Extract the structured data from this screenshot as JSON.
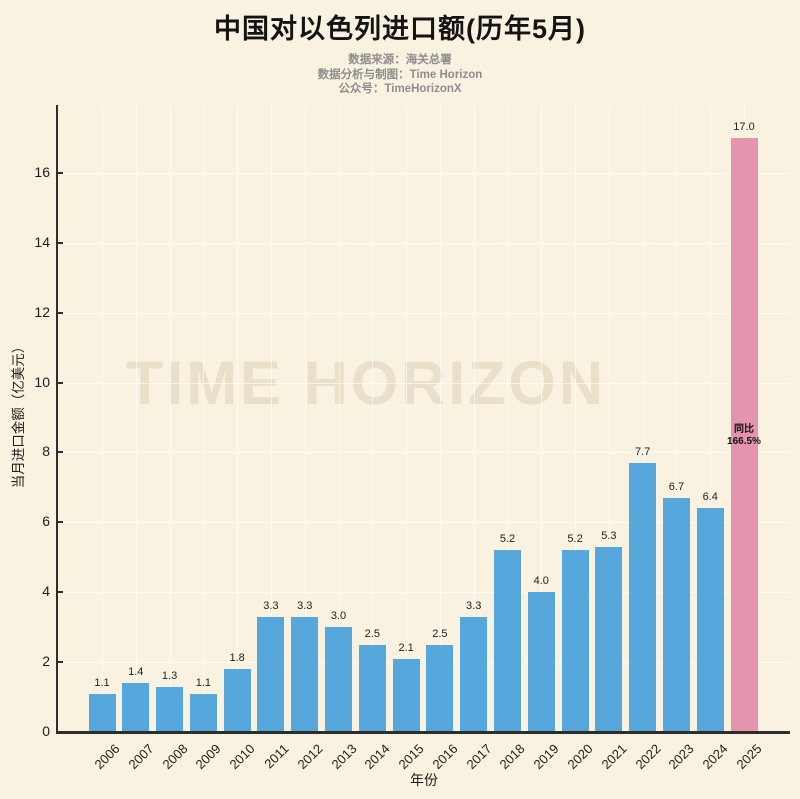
{
  "page": {
    "background_color": "#faf2e0"
  },
  "header": {
    "title": "中国对以色列进口额(历年5月)",
    "subtitle_lines": [
      "数据来源：海关总署",
      "数据分析与制图：Time Horizon",
      "公众号：TimeHorizonX"
    ]
  },
  "watermark": "TIME HORIZON",
  "chart_data": {
    "type": "bar",
    "title": "中国对以色列进口额(历年5月)",
    "xlabel": "年份",
    "ylabel": "当月进口金额（亿美元）",
    "categories": [
      "2006",
      "2007",
      "2008",
      "2009",
      "2010",
      "2011",
      "2012",
      "2013",
      "2014",
      "2015",
      "2016",
      "2017",
      "2018",
      "2019",
      "2020",
      "2021",
      "2022",
      "2023",
      "2024",
      "2025"
    ],
    "values": [
      1.1,
      1.4,
      1.3,
      1.1,
      1.8,
      3.3,
      3.3,
      3.0,
      2.5,
      2.1,
      2.5,
      3.3,
      5.2,
      4.0,
      5.2,
      5.3,
      7.7,
      6.7,
      6.4,
      17.0
    ],
    "bar_value_labels": [
      "1.1",
      "1.4",
      "1.3",
      "1.1",
      "1.8",
      "3.3",
      "3.3",
      "3.0",
      "2.5",
      "2.1",
      "2.5",
      "3.3",
      "5.2",
      "4.0",
      "5.2",
      "5.3",
      "7.7",
      "6.7",
      "6.4",
      "17.0"
    ],
    "y_ticks": [
      0,
      2,
      4,
      6,
      8,
      10,
      12,
      14,
      16
    ],
    "ylim": [
      0,
      17.9
    ],
    "grid": true,
    "legend": "none",
    "bar_color": "#56a8dc",
    "highlight_color": "#e594ae",
    "highlight_index": 19,
    "annotation": {
      "line1": "同比",
      "line2": "166.5%",
      "target_category": "2025"
    }
  }
}
